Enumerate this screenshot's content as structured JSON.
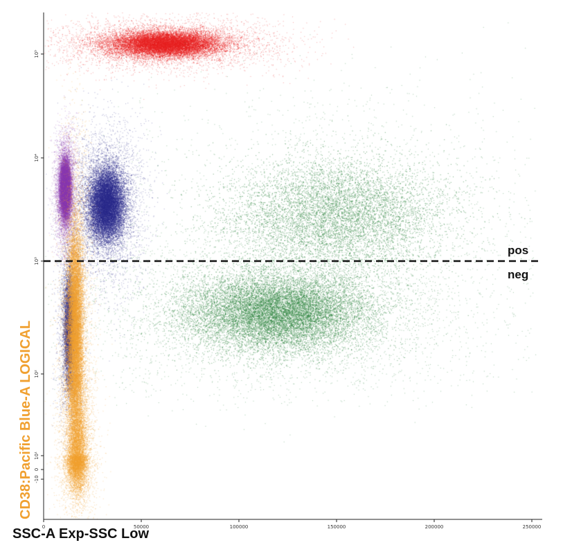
{
  "chart_data": {
    "type": "scatter",
    "title": "",
    "xlabel": "SSC-A Exp-SSC Low",
    "ylabel": "CD38:Pacific Blue-A LOGICAL",
    "ylabel_color": "#f0a030",
    "xlim": [
      0,
      252000
    ],
    "x_ticks": [
      {
        "value": 0,
        "label": "0"
      },
      {
        "value": 50000,
        "label": "50000"
      },
      {
        "value": 100000,
        "label": "100000"
      },
      {
        "value": 150000,
        "label": "150000"
      },
      {
        "value": 200000,
        "label": "200000"
      },
      {
        "value": 250000,
        "label": "250000"
      }
    ],
    "y_scale": "logicle",
    "y_ticks": [
      {
        "value": -10,
        "label": "-10"
      },
      {
        "value": 0,
        "label": "0"
      },
      {
        "value": 10,
        "label": "10¹"
      },
      {
        "value": 100,
        "label": "10²"
      },
      {
        "value": 1000,
        "label": "10³"
      },
      {
        "value": 10000,
        "label": "10⁴"
      },
      {
        "value": 100000,
        "label": "10⁵"
      }
    ],
    "threshold": {
      "y": 1000,
      "above_label": "pos",
      "below_label": "neg"
    },
    "grid": false,
    "series": [
      {
        "color": "#e82020",
        "clusters": [
          {
            "x": 62000,
            "y_decade": 5.1,
            "x_spread": 28000,
            "y_spread": 0.12,
            "weight": 1.0
          }
        ]
      },
      {
        "color": "#1e7a30",
        "clusters": [
          {
            "x": 120000,
            "y_decade": 2.55,
            "x_spread": 48000,
            "y_spread": 0.35,
            "weight": 1.0
          },
          {
            "x": 150000,
            "y_decade": 3.45,
            "x_spread": 55000,
            "y_spread": 0.55,
            "weight": 0.55
          }
        ]
      },
      {
        "color": "#2a2a8a",
        "clusters": [
          {
            "x": 32000,
            "y_decade": 3.55,
            "x_spread": 9000,
            "y_spread": 0.35,
            "weight": 1.0
          },
          {
            "x": 13000,
            "y_decade": 2.4,
            "x_spread": 3000,
            "y_spread": 0.5,
            "weight": 0.4
          }
        ]
      },
      {
        "color": "#8a3ab0",
        "clusters": [
          {
            "x": 11000,
            "y_decade": 3.7,
            "x_spread": 2500,
            "y_spread": 0.25,
            "weight": 1.0
          }
        ]
      },
      {
        "color": "#f0a030",
        "clusters": [
          {
            "x": 16000,
            "y_decade": 2.4,
            "x_spread": 4000,
            "y_spread": 0.9,
            "weight": 1.0
          },
          {
            "x": 17000,
            "y_decade": 1.0,
            "x_spread": 5000,
            "y_spread": 0.8,
            "weight": 0.5
          }
        ]
      }
    ]
  }
}
